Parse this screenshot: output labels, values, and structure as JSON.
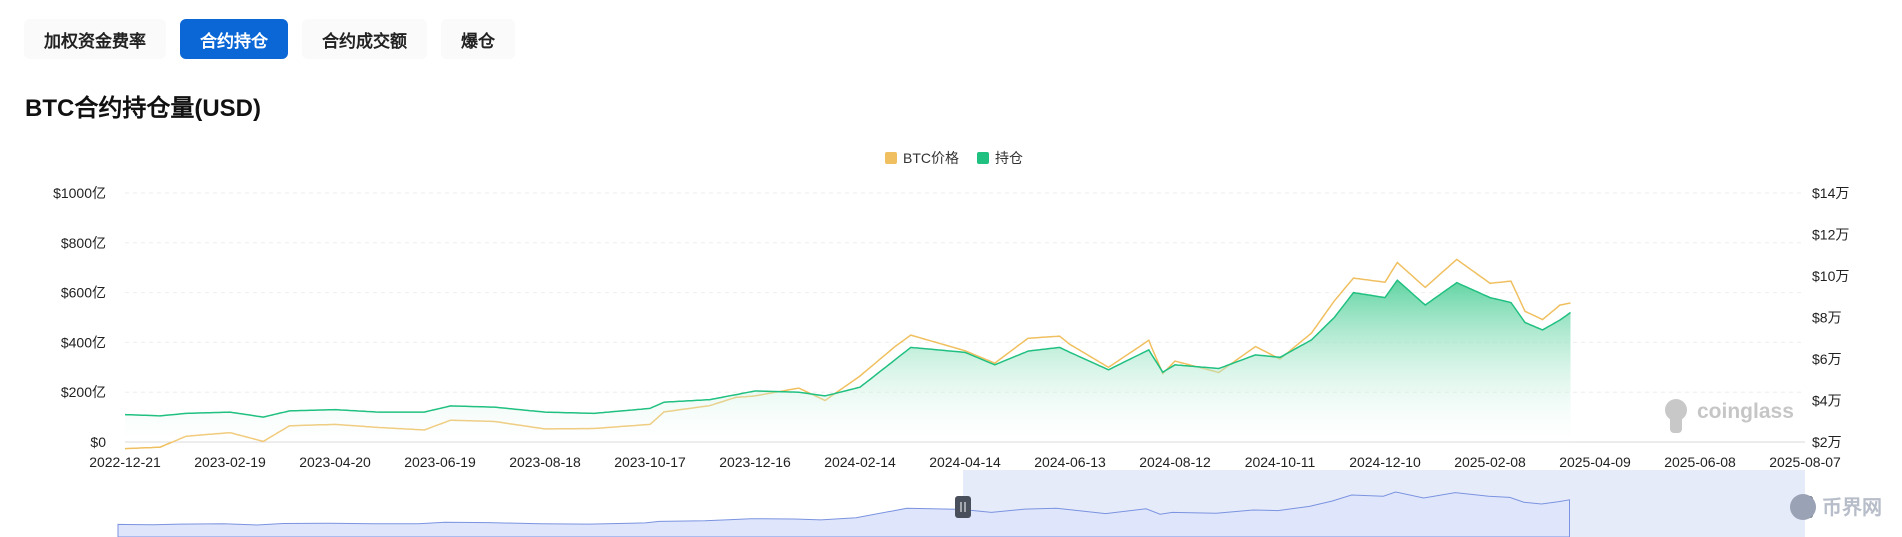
{
  "tabs": [
    {
      "label": "加权资金费率",
      "active": false
    },
    {
      "label": "合约持仓",
      "active": true
    },
    {
      "label": "合约成交额",
      "active": false
    },
    {
      "label": "爆仓",
      "active": false
    }
  ],
  "page_title": "BTC合约持仓量(USD)",
  "watermark": "coinglass",
  "corner_logo_text": "币界网",
  "colors": {
    "accent": "#0b66d6",
    "price_line": "#f0c060",
    "oi_line": "#20c080",
    "oi_fill_top": "#4fcf98",
    "navigator": "#7b93e0",
    "nav_selection": "#e6ebfa"
  },
  "chart_data": {
    "type": "line",
    "title": "",
    "legend": {
      "placement": "top-center",
      "items": [
        "BTC价格",
        "持仓"
      ]
    },
    "x_ticks": [
      "2022-12-21",
      "2023-02-19",
      "2023-04-20",
      "2023-06-19",
      "2023-08-18",
      "2023-10-17",
      "2023-12-16",
      "2024-02-14",
      "2024-04-14",
      "2024-06-13",
      "2024-08-12",
      "2024-10-11",
      "2024-12-10",
      "2025-02-08",
      "2025-04-09",
      "2025-06-08",
      "2025-08-07"
    ],
    "y_left_ticks": [
      "$0",
      "$200亿",
      "$400亿",
      "$600亿",
      "$800亿",
      "$1000亿"
    ],
    "y_right_ticks": [
      "$2万",
      "$4万",
      "$6万",
      "$8万",
      "$10万",
      "$12万",
      "$14万"
    ],
    "y_left_range": [
      0,
      100000000000
    ],
    "y_right_range": [
      20000,
      140000
    ],
    "grid": true,
    "series": [
      {
        "name": "BTC价格",
        "axis": "right",
        "type": "line",
        "points": [
          [
            "2022-12-21",
            16800
          ],
          [
            "2023-01-10",
            17500
          ],
          [
            "2023-01-25",
            22800
          ],
          [
            "2023-02-19",
            24500
          ],
          [
            "2023-03-10",
            20300
          ],
          [
            "2023-03-25",
            27800
          ],
          [
            "2023-04-20",
            28500
          ],
          [
            "2023-05-15",
            27000
          ],
          [
            "2023-06-10",
            25800
          ],
          [
            "2023-06-25",
            30500
          ],
          [
            "2023-07-20",
            29900
          ],
          [
            "2023-08-18",
            26300
          ],
          [
            "2023-09-15",
            26500
          ],
          [
            "2023-10-17",
            28500
          ],
          [
            "2023-10-25",
            34500
          ],
          [
            "2023-11-20",
            37500
          ],
          [
            "2023-12-05",
            41500
          ],
          [
            "2023-12-16",
            42200
          ],
          [
            "2024-01-10",
            46000
          ],
          [
            "2024-01-25",
            40000
          ],
          [
            "2024-02-14",
            51800
          ],
          [
            "2024-03-05",
            66000
          ],
          [
            "2024-03-14",
            71500
          ],
          [
            "2024-04-14",
            64000
          ],
          [
            "2024-05-01",
            58000
          ],
          [
            "2024-05-20",
            70000
          ],
          [
            "2024-06-07",
            71000
          ],
          [
            "2024-06-13",
            67000
          ],
          [
            "2024-07-05",
            56000
          ],
          [
            "2024-07-28",
            69000
          ],
          [
            "2024-08-05",
            53000
          ],
          [
            "2024-08-12",
            59000
          ],
          [
            "2024-09-06",
            53500
          ],
          [
            "2024-09-27",
            66000
          ],
          [
            "2024-10-11",
            60000
          ],
          [
            "2024-10-29",
            72500
          ],
          [
            "2024-11-11",
            88000
          ],
          [
            "2024-11-22",
            99000
          ],
          [
            "2024-12-10",
            97000
          ],
          [
            "2024-12-17",
            106500
          ],
          [
            "2025-01-02",
            94500
          ],
          [
            "2025-01-20",
            108000
          ],
          [
            "2025-02-08",
            96500
          ],
          [
            "2025-02-20",
            97500
          ],
          [
            "2025-02-28",
            83000
          ],
          [
            "2025-03-10",
            79000
          ],
          [
            "2025-03-20",
            86000
          ],
          [
            "2025-03-26",
            87000
          ]
        ]
      },
      {
        "name": "持仓",
        "axis": "left",
        "type": "area",
        "points": [
          [
            "2022-12-21",
            11000000000
          ],
          [
            "2023-01-10",
            10500000000
          ],
          [
            "2023-01-25",
            11500000000
          ],
          [
            "2023-02-19",
            12000000000
          ],
          [
            "2023-03-10",
            10000000000
          ],
          [
            "2023-03-25",
            12500000000
          ],
          [
            "2023-04-20",
            13000000000
          ],
          [
            "2023-05-15",
            12000000000
          ],
          [
            "2023-06-10",
            12000000000
          ],
          [
            "2023-06-25",
            14500000000
          ],
          [
            "2023-07-20",
            14000000000
          ],
          [
            "2023-08-18",
            12000000000
          ],
          [
            "2023-09-15",
            11500000000
          ],
          [
            "2023-10-17",
            13500000000
          ],
          [
            "2023-10-25",
            16000000000
          ],
          [
            "2023-11-20",
            17000000000
          ],
          [
            "2023-12-05",
            19000000000
          ],
          [
            "2023-12-16",
            20500000000
          ],
          [
            "2024-01-10",
            20000000000
          ],
          [
            "2024-01-25",
            18500000000
          ],
          [
            "2024-02-14",
            22000000000
          ],
          [
            "2024-03-05",
            33000000000
          ],
          [
            "2024-03-14",
            38000000000
          ],
          [
            "2024-04-14",
            36000000000
          ],
          [
            "2024-05-01",
            31000000000
          ],
          [
            "2024-05-20",
            36500000000
          ],
          [
            "2024-06-07",
            38000000000
          ],
          [
            "2024-06-13",
            36000000000
          ],
          [
            "2024-07-05",
            29000000000
          ],
          [
            "2024-07-28",
            37000000000
          ],
          [
            "2024-08-05",
            28000000000
          ],
          [
            "2024-08-12",
            31000000000
          ],
          [
            "2024-09-06",
            29500000000
          ],
          [
            "2024-09-27",
            35000000000
          ],
          [
            "2024-10-11",
            34000000000
          ],
          [
            "2024-10-29",
            41000000000
          ],
          [
            "2024-11-11",
            50000000000
          ],
          [
            "2024-11-22",
            60000000000
          ],
          [
            "2024-12-10",
            58000000000
          ],
          [
            "2024-12-17",
            65000000000
          ],
          [
            "2025-01-02",
            55000000000
          ],
          [
            "2025-01-20",
            64000000000
          ],
          [
            "2025-02-08",
            58000000000
          ],
          [
            "2025-02-20",
            56000000000
          ],
          [
            "2025-02-28",
            48000000000
          ],
          [
            "2025-03-10",
            45000000000
          ],
          [
            "2025-03-20",
            49000000000
          ],
          [
            "2025-03-26",
            52000000000
          ]
        ]
      }
    ]
  }
}
